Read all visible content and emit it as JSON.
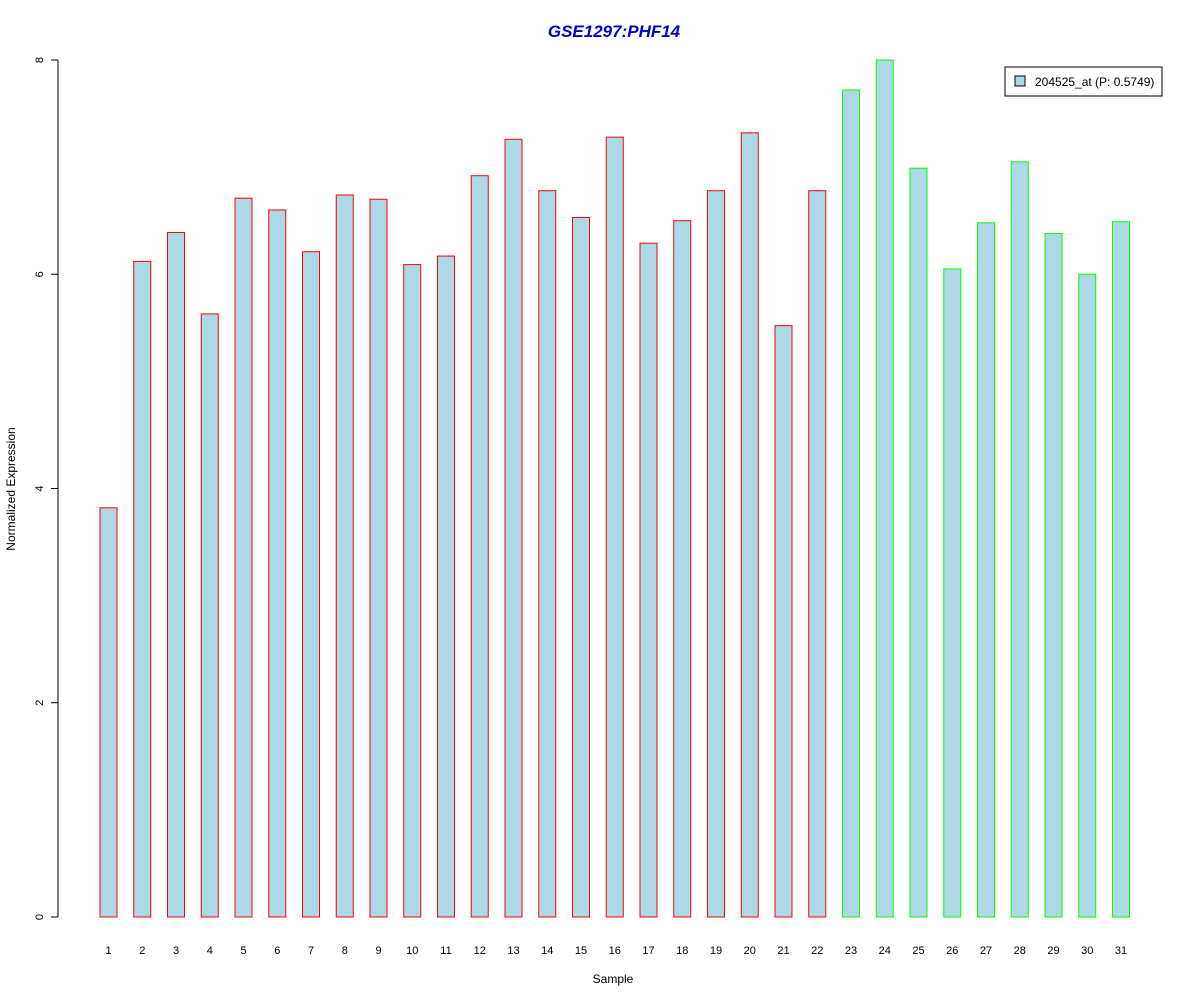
{
  "chart_data": {
    "type": "bar",
    "title": "GSE1297:PHF14",
    "xlabel": "Sample",
    "ylabel": "Normalized Expression",
    "ylim": [
      0,
      8
    ],
    "yticks": [
      0,
      2,
      4,
      6,
      8
    ],
    "categories": [
      "1",
      "2",
      "3",
      "4",
      "5",
      "6",
      "7",
      "8",
      "9",
      "10",
      "11",
      "12",
      "13",
      "14",
      "15",
      "16",
      "17",
      "18",
      "19",
      "20",
      "21",
      "22",
      "23",
      "24",
      "25",
      "26",
      "27",
      "28",
      "29",
      "30",
      "31"
    ],
    "values": [
      3.82,
      6.12,
      6.39,
      5.63,
      6.71,
      6.6,
      6.21,
      6.74,
      6.7,
      6.09,
      6.17,
      6.92,
      7.26,
      6.78,
      6.53,
      7.28,
      6.29,
      6.5,
      6.78,
      7.32,
      5.52,
      6.78,
      7.72,
      8.0,
      6.99,
      6.05,
      6.48,
      7.05,
      6.38,
      6.0,
      6.49
    ],
    "groups": [
      1,
      1,
      1,
      1,
      1,
      1,
      1,
      1,
      1,
      1,
      1,
      1,
      1,
      1,
      1,
      1,
      1,
      1,
      1,
      1,
      1,
      1,
      2,
      2,
      2,
      2,
      2,
      2,
      2,
      2,
      2
    ],
    "group_border_colors": {
      "1": "#ff0000",
      "2": "#00ff00"
    },
    "bar_fill": "#add8e6",
    "title_color": "#0000cd",
    "series": [
      {
        "name": "204525_at (P: 0.5749)"
      }
    ],
    "legend_position": "top-right",
    "grid": false
  }
}
